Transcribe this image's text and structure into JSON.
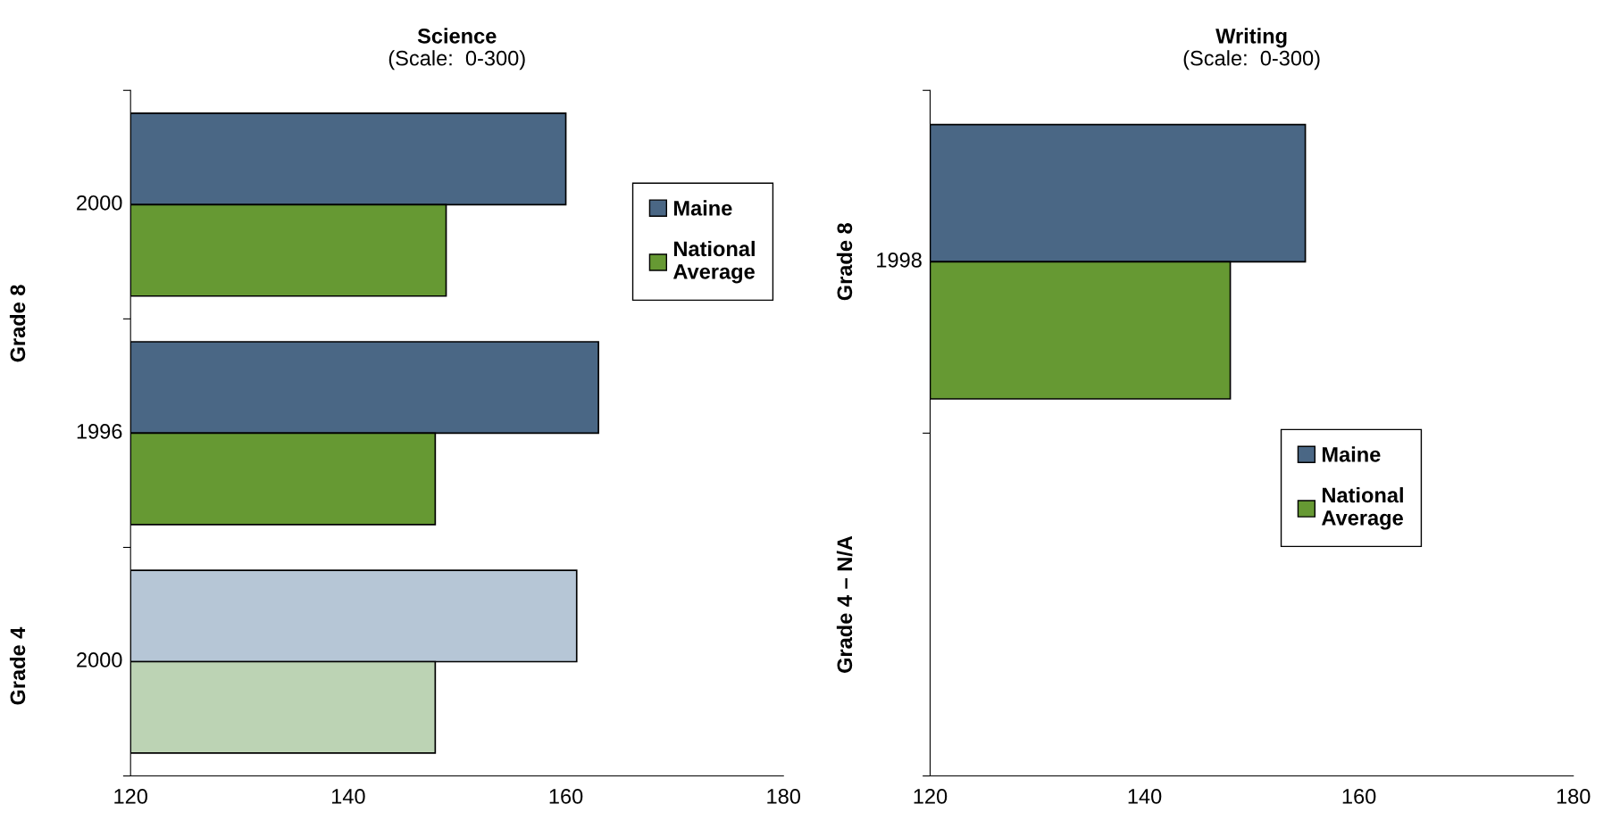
{
  "chart_data": [
    {
      "type": "bar",
      "orientation": "horizontal",
      "title": "Science",
      "subtitle": "(Scale:  0-300)",
      "categories": [
        "2000",
        "1996",
        "2000"
      ],
      "series": [
        {
          "name": "Maine",
          "color": "#4a6785",
          "colors": [
            "#4a6785",
            "#4a6785",
            "#b6c6d6"
          ],
          "values": [
            160,
            163,
            161
          ]
        },
        {
          "name": "National Average",
          "color": "#669933",
          "colors": [
            "#669933",
            "#669933",
            "#bcd3b4"
          ],
          "values": [
            149,
            148,
            148
          ]
        }
      ],
      "annotations": [
        "Grade 8",
        "Grade 4"
      ],
      "xlim": [
        120,
        180
      ],
      "xticks": [
        120,
        140,
        160,
        180
      ],
      "grid": false,
      "legend": "top right"
    },
    {
      "type": "bar",
      "orientation": "horizontal",
      "title": "Writing",
      "subtitle": "(Scale:  0-300)",
      "categories": [
        "1998",
        null
      ],
      "series": [
        {
          "name": "Maine",
          "color": "#4a6785",
          "values": [
            155,
            null
          ]
        },
        {
          "name": "National Average",
          "color": "#669933",
          "values": [
            148,
            null
          ]
        }
      ],
      "annotations": [
        "Grade 8",
        "Grade 4 – N/A"
      ],
      "xlim": [
        120,
        180
      ],
      "xticks": [
        120,
        140,
        160,
        180
      ],
      "grid": false,
      "legend": "center right"
    }
  ]
}
